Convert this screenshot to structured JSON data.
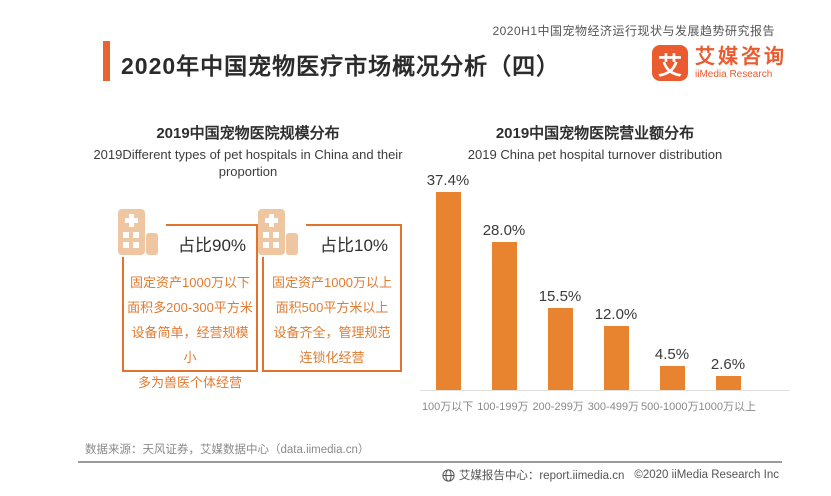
{
  "report_tagline": "2020H1中国宠物经济运行现状与发展趋势研究报告",
  "page_title": "2020年中国宠物医疗市场概况分析（四）",
  "logo": {
    "glyph": "艾",
    "name_cn": "艾媒咨询",
    "name_en": "iiMedia Research"
  },
  "left_panel": {
    "title_cn": "2019中国宠物医院规模分布",
    "title_en": "2019Different types of pet hospitals in China and their proportion",
    "cards": [
      {
        "share_label": "占比90%",
        "icon": "hospital-building-icon",
        "lines": [
          "固定资产1000万以下",
          "面积多200-300平方米",
          "设备简单，经营规模小",
          "多为兽医个体经营"
        ]
      },
      {
        "share_label": "占比10%",
        "icon": "hospital-building-icon",
        "lines": [
          "固定资产1000万以上",
          "面积500平方米以上",
          "设备齐全，管理规范",
          "连锁化经营"
        ]
      }
    ]
  },
  "right_panel": {
    "title_cn": "2019中国宠物医院营业额分布",
    "title_en": "2019 China pet hospital turnover distribution"
  },
  "chart_data": {
    "type": "bar",
    "title": "2019中国宠物医院营业额分布",
    "categories": [
      "100万以下",
      "100-199万",
      "200-299万",
      "300-499万",
      "500-1000万",
      "1000万以上"
    ],
    "values": [
      37.4,
      28.0,
      15.5,
      12.0,
      4.5,
      2.6
    ],
    "value_labels": [
      "37.4%",
      "28.0%",
      "15.5%",
      "12.0%",
      "4.5%",
      "2.6%"
    ],
    "bar_color": "#e8832f",
    "xlabel": "",
    "ylabel": "",
    "ylim": [
      0,
      40
    ],
    "grid": false,
    "legend": false
  },
  "footer": {
    "source": "数据来源：天风证券，艾媒数据中心（data.iimedia.cn）",
    "report_center": "艾媒报告中心：report.iimedia.cn",
    "copyright": "©2020  iiMedia Research  Inc"
  },
  "colors": {
    "accent_orange": "#e8632f",
    "logo_orange": "#ea5b2f",
    "bar_orange": "#e8832f",
    "card_border_orange": "#e0732d",
    "icon_tan": "#eec6a2",
    "body_text_orange": "#e07b31",
    "text_dark": "#2b2b2b",
    "text_gray": "#8a8a8a"
  }
}
